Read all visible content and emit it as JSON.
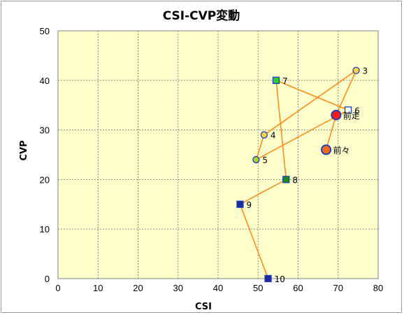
{
  "chart_data": {
    "type": "scatter",
    "title": "CSI-CVP変動",
    "xlabel": "CSI",
    "ylabel": "CVP",
    "xlim": [
      0,
      80
    ],
    "ylim": [
      0,
      50
    ],
    "x_ticks": [
      "0",
      "10",
      "20",
      "30",
      "40",
      "50",
      "60",
      "70",
      "80"
    ],
    "y_ticks": [
      "0",
      "10",
      "20",
      "30",
      "40",
      "50"
    ],
    "grid": true,
    "plot_background": "#ffffcc",
    "line_color": "#ff8c1a",
    "points": [
      {
        "label": "前々",
        "x": 67,
        "y": 26,
        "shape": "circle",
        "fill": "#ff6a13",
        "stroke": "#1a3fbf"
      },
      {
        "label": "前走",
        "x": 69.5,
        "y": 33,
        "shape": "circle",
        "fill": "#ff1a1a",
        "stroke": "#1a3fbf"
      },
      {
        "label": "3",
        "x": 74.5,
        "y": 42,
        "shape": "circle",
        "fill": "#ffd24d",
        "stroke": "#1a3fbf"
      },
      {
        "label": "4",
        "x": 51.5,
        "y": 29,
        "shape": "circle",
        "fill": "#ffd24d",
        "stroke": "#1a3fbf"
      },
      {
        "label": "5",
        "x": 49.5,
        "y": 24,
        "shape": "circle",
        "fill": "#b0d020",
        "stroke": "#1a3fbf"
      },
      {
        "label": "6",
        "x": 72.5,
        "y": 34,
        "shape": "square",
        "fill": "#ffffff",
        "stroke": "#1a3fbf"
      },
      {
        "label": "7",
        "x": 54.5,
        "y": 40,
        "shape": "square",
        "fill": "#33cc33",
        "stroke": "#1a3fbf"
      },
      {
        "label": "8",
        "x": 57,
        "y": 20,
        "shape": "square",
        "fill": "#1a8a1a",
        "stroke": "#1a3fbf"
      },
      {
        "label": "9",
        "x": 45.5,
        "y": 15,
        "shape": "square",
        "fill": "#1a2a9a",
        "stroke": "#1a3fbf"
      },
      {
        "label": "10",
        "x": 52.5,
        "y": 0,
        "shape": "square",
        "fill": "#1a2a9a",
        "stroke": "#1a3fbf"
      }
    ]
  }
}
